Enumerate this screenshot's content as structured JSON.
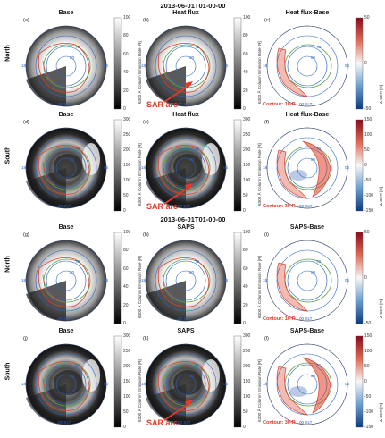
{
  "headers": [
    "2013-06-01T01-00-00",
    "2013-06-01T01-00-00"
  ],
  "hemispheres": [
    "North",
    "South",
    "North",
    "South"
  ],
  "slt": {
    "midnight": "00 SLT",
    "dusk": "18",
    "dawn": "06"
  },
  "latitudes": [
    "80",
    "70",
    "60"
  ],
  "annotation": "SAR arc",
  "cbar_units": {
    "abs": "6300 Å Column Emission Rate [R]",
    "diff": "Δ CER [R]"
  },
  "colors": {
    "arrow": "#e23a26",
    "ring": "#2a64c8",
    "contour": "#d9402a",
    "green_contour": "#5aa14a"
  },
  "rows": [
    {
      "hemisphere": "North",
      "panels": [
        {
          "label": "(a)",
          "title": "Base",
          "cbar": "abs",
          "ticks": [
            "100",
            "80",
            "60",
            "40",
            "20",
            "0"
          ],
          "style": "north-abs"
        },
        {
          "label": "(b)",
          "title": "Heat flux",
          "cbar": "abs",
          "ticks": [
            "100",
            "80",
            "60",
            "40",
            "20",
            "0"
          ],
          "style": "north-abs",
          "sar": true
        },
        {
          "label": "(c)",
          "title": "Heat flux-Base",
          "cbar": "diff",
          "ticks": [
            "50",
            "0",
            "-50"
          ],
          "style": "north-diff",
          "contour": "Contour: 10-R"
        }
      ]
    },
    {
      "hemisphere": "South",
      "panels": [
        {
          "label": "(d)",
          "title": "Base",
          "cbar": "abs",
          "ticks": [
            "300",
            "250",
            "200",
            "150",
            "100",
            "50",
            "0"
          ],
          "style": "south-abs"
        },
        {
          "label": "(e)",
          "title": "Heat flux",
          "cbar": "abs",
          "ticks": [
            "300",
            "250",
            "200",
            "150",
            "100",
            "50",
            "0"
          ],
          "style": "south-abs",
          "sar": true
        },
        {
          "label": "(f)",
          "title": "Heat flux-Base",
          "cbar": "diff",
          "ticks": [
            "150",
            "100",
            "50",
            "0",
            "-50",
            "-100",
            "-150"
          ],
          "style": "south-diff",
          "contour": "Contour: 30-R"
        }
      ]
    },
    {
      "hemisphere": "North",
      "panels": [
        {
          "label": "(g)",
          "title": "Base",
          "cbar": "abs",
          "ticks": [
            "100",
            "80",
            "60",
            "40",
            "20",
            "0"
          ],
          "style": "north-abs"
        },
        {
          "label": "(h)",
          "title": "SAPS",
          "cbar": "abs",
          "ticks": [
            "100",
            "80",
            "60",
            "40",
            "20",
            "0"
          ],
          "style": "north-abs"
        },
        {
          "label": "(i)",
          "title": "SAPS-Base",
          "cbar": "diff",
          "ticks": [
            "50",
            "0",
            "-50"
          ],
          "style": "north-diff",
          "contour": "Contour: 10-R"
        }
      ]
    },
    {
      "hemisphere": "South",
      "panels": [
        {
          "label": "(j)",
          "title": "Base",
          "cbar": "abs",
          "ticks": [
            "300",
            "250",
            "200",
            "150",
            "100",
            "50",
            "0"
          ],
          "style": "south-abs"
        },
        {
          "label": "(k)",
          "title": "SAPS",
          "cbar": "abs",
          "ticks": [
            "300",
            "250",
            "200",
            "150",
            "100",
            "50",
            "0"
          ],
          "style": "south-abs",
          "sar": true
        },
        {
          "label": "(l)",
          "title": "SAPS-Base",
          "cbar": "diff",
          "ticks": [
            "150",
            "100",
            "50",
            "0",
            "-50",
            "-100",
            "-150"
          ],
          "style": "south-diff",
          "contour": "Contour: 30-R"
        }
      ]
    }
  ]
}
